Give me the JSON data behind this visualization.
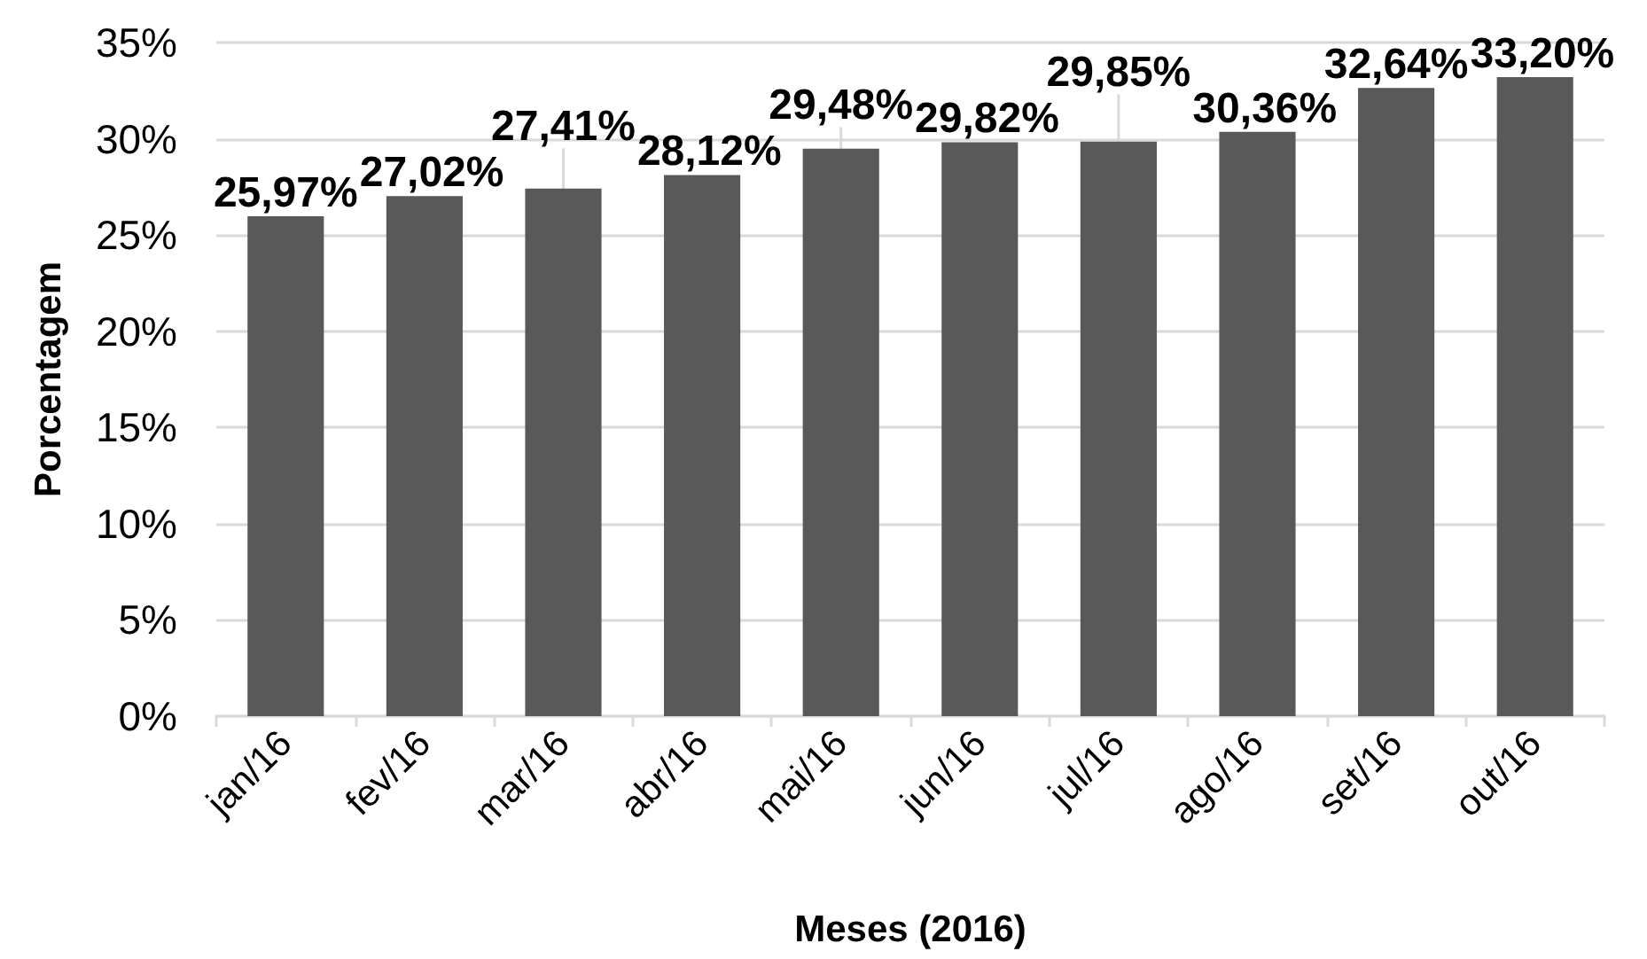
{
  "chart_data": {
    "type": "bar",
    "xlabel": "Meses (2016)",
    "ylabel": "Porcentagem",
    "categories": [
      "jan/16",
      "fev/16",
      "mar/16",
      "abr/16",
      "mai/16",
      "jun/16",
      "jul/16",
      "ago/16",
      "set/16",
      "out/16"
    ],
    "values": [
      25.97,
      27.02,
      27.41,
      28.12,
      29.48,
      29.82,
      29.85,
      30.36,
      32.64,
      33.2
    ],
    "value_labels": [
      "25,97%",
      "27,02%",
      "27,41%",
      "28,12%",
      "29,48%",
      "29,82%",
      "29,85%",
      "30,36%",
      "32,64%",
      "33,20%"
    ],
    "color": "#595959",
    "ylim": [
      0,
      35
    ],
    "yticks": [
      {
        "value": 0,
        "label": "0%"
      },
      {
        "value": 5,
        "label": "5%"
      },
      {
        "value": 10,
        "label": "10%"
      },
      {
        "value": 15,
        "label": "15%"
      },
      {
        "value": 20,
        "label": "20%"
      },
      {
        "value": 25,
        "label": "25%"
      },
      {
        "value": 30,
        "label": "30%"
      },
      {
        "value": 35,
        "label": "35%"
      }
    ],
    "grid": "y"
  }
}
